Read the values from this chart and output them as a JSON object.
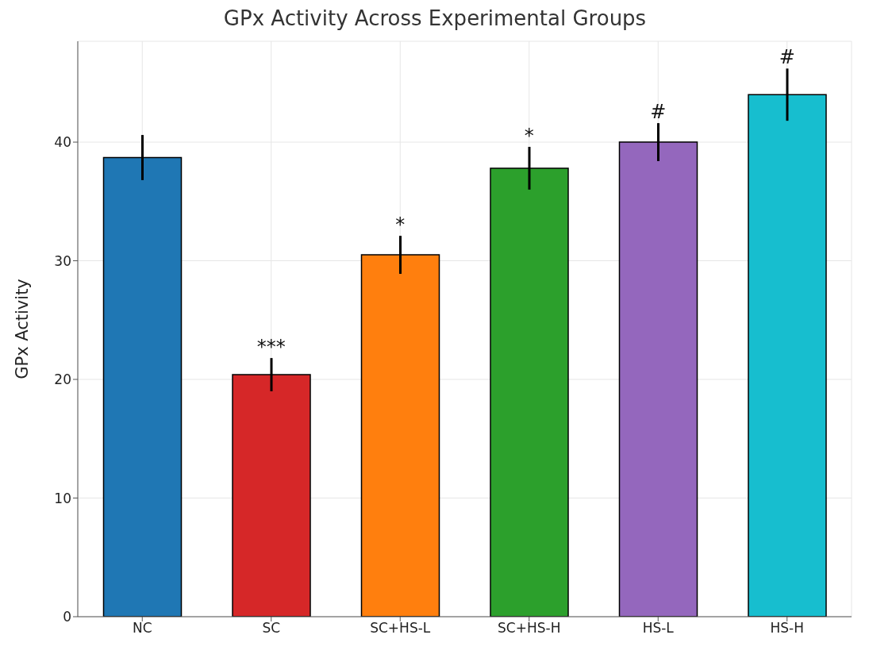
{
  "chart_data": {
    "type": "bar",
    "title": "GPx Activity Across Experimental Groups",
    "ylabel": "GPx Activity",
    "categories": [
      "NC",
      "SC",
      "SC+HS-L",
      "SC+HS-H",
      "HS-L",
      "HS-H"
    ],
    "values": [
      38.7,
      20.4,
      30.5,
      37.8,
      40.0,
      44.0
    ],
    "errors": [
      1.9,
      1.4,
      1.6,
      1.8,
      1.6,
      2.2
    ],
    "colors": [
      "#1f77b4",
      "#d62728",
      "#ff7f0e",
      "#2ca02c",
      "#9467bd",
      "#17becf"
    ],
    "ylim": [
      0,
      48.5
    ],
    "yticks": [
      0,
      10,
      20,
      30,
      40
    ],
    "grid": true,
    "annotations": [
      {
        "text": "***",
        "x": "SC",
        "y": 21.8
      },
      {
        "text": "*",
        "x": "SC+HS-L",
        "y": 32.1
      },
      {
        "text": "*",
        "x": "SC+HS-H",
        "y": 39.6
      },
      {
        "text": "#",
        "x": "HS-L",
        "y": 41.6
      },
      {
        "text": "#",
        "x": "HS-H",
        "y": 46.2
      }
    ]
  }
}
